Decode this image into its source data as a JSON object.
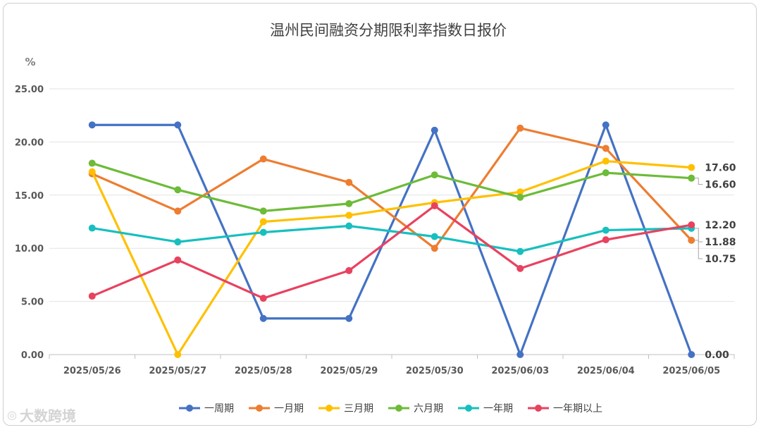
{
  "chart_data": {
    "type": "line",
    "title": "温州民间融资分期限利率指数日报价",
    "ylabel": "%",
    "xlabel": "",
    "ylim": [
      0,
      25
    ],
    "yticks": [
      "0.00",
      "5.00",
      "10.00",
      "15.00",
      "20.00",
      "25.00"
    ],
    "categories": [
      "2025/05/26",
      "2025/05/27",
      "2025/05/28",
      "2025/05/29",
      "2025/05/30",
      "2025/06/03",
      "2025/06/04",
      "2025/06/05"
    ],
    "grid": true,
    "legend_position": "bottom",
    "series": [
      {
        "name": "一周期",
        "color": "#4472C4",
        "values": [
          21.6,
          21.6,
          3.4,
          3.4,
          21.1,
          0.0,
          21.6,
          0.0
        ]
      },
      {
        "name": "一月期",
        "color": "#ED7D31",
        "values": [
          17.0,
          13.5,
          18.4,
          16.2,
          10.0,
          21.3,
          19.4,
          10.75
        ]
      },
      {
        "name": "三月期",
        "color": "#FFC000",
        "values": [
          17.2,
          0.0,
          12.5,
          13.1,
          14.3,
          15.3,
          18.2,
          17.6
        ]
      },
      {
        "name": "六月期",
        "color": "#6DBB38",
        "values": [
          18.0,
          15.5,
          13.5,
          14.2,
          16.9,
          14.8,
          17.1,
          16.6
        ]
      },
      {
        "name": "一年期",
        "color": "#17BFBF",
        "values": [
          11.9,
          10.6,
          11.5,
          12.1,
          11.1,
          9.7,
          11.7,
          11.88
        ]
      },
      {
        "name": "一年期以上",
        "color": "#E8425F",
        "values": [
          5.5,
          8.9,
          5.3,
          7.9,
          14.0,
          8.1,
          10.8,
          12.2
        ]
      }
    ],
    "annotations": [
      {
        "series": 0,
        "text": "0.00"
      },
      {
        "series": 1,
        "text": "10.75"
      },
      {
        "series": 2,
        "text": "17.60"
      },
      {
        "series": 3,
        "text": "16.60"
      },
      {
        "series": 4,
        "text": "11.88"
      },
      {
        "series": 5,
        "text": "12.20"
      }
    ]
  },
  "watermark": {
    "text": "大数跨境",
    "icon": "logo-icon"
  }
}
